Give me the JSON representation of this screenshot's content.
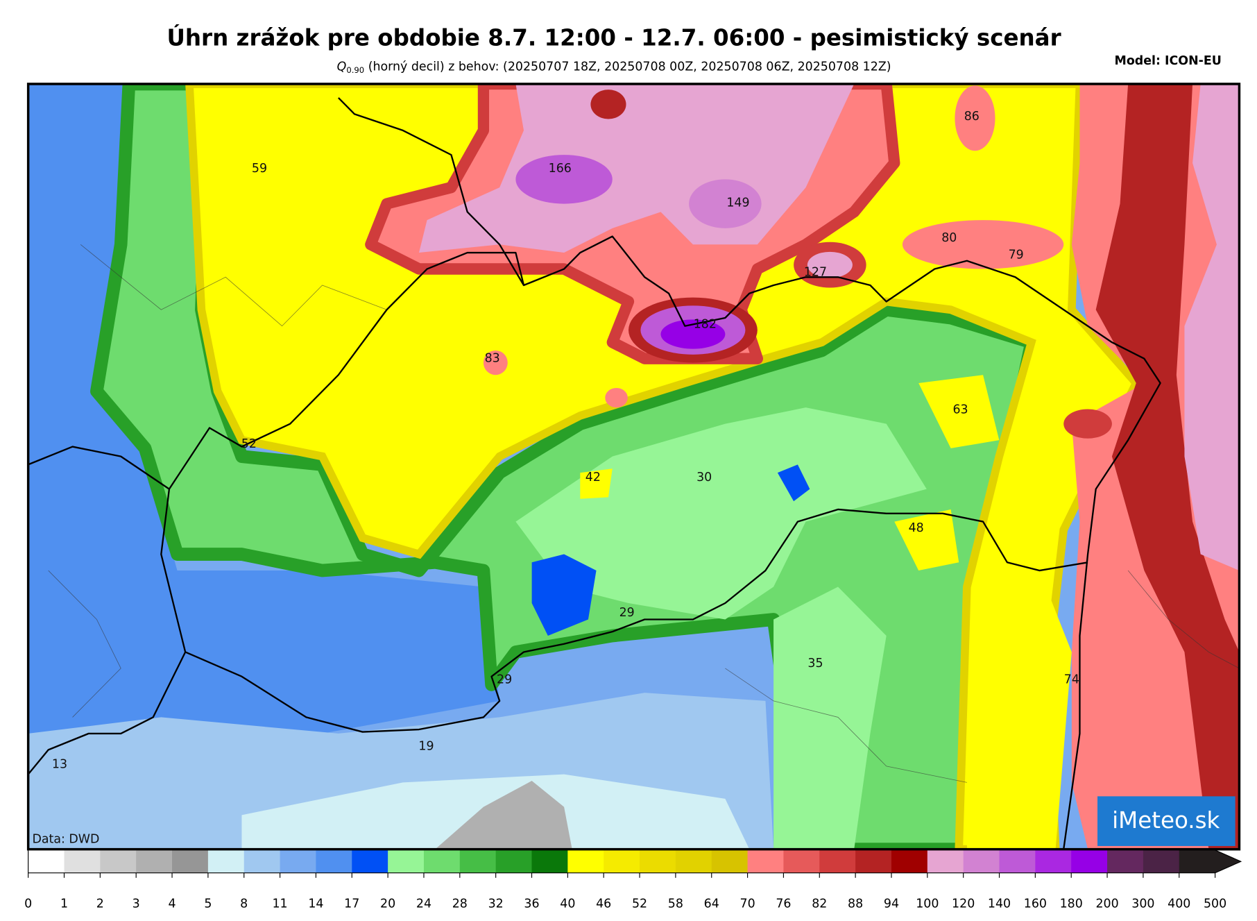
{
  "header": {
    "title": "Úhrn zrážok pre obdobie 8.7. 12:00 - 12.7. 06:00 - pesimistický scenár",
    "subtitle_symbol": "Q",
    "subtitle_subscript": "0.90",
    "subtitle": " (horný decil) z behov: (20250707 18Z, 20250708 00Z, 20250708 06Z, 20250708 12Z)",
    "model": "Model: ICON-EU"
  },
  "map": {
    "labels": [
      59,
      166,
      149,
      86,
      80,
      79,
      127,
      182,
      83,
      63,
      52,
      42,
      30,
      48,
      29,
      35,
      74,
      29,
      19,
      13
    ],
    "source": "Data: DWD",
    "logo": "iMeteo.sk"
  },
  "colorbar": {
    "ticks": [
      0,
      1,
      2,
      3,
      4,
      5,
      8,
      11,
      14,
      17,
      20,
      24,
      28,
      32,
      36,
      40,
      46,
      52,
      58,
      64,
      70,
      76,
      82,
      88,
      94,
      100,
      120,
      140,
      160,
      180,
      200,
      300,
      400,
      500
    ],
    "colors": [
      "#ffffff",
      "#e0e0e0",
      "#c8c8c8",
      "#b0b0b0",
      "#969696",
      "#d2f0f5",
      "#a0c8f0",
      "#78aaf0",
      "#5090f0",
      "#0050f5",
      "#96f596",
      "#6edc6e",
      "#46be46",
      "#28a028",
      "#0a780a",
      "#ffff00",
      "#f5eb00",
      "#ebdc00",
      "#e1d200",
      "#d7c300",
      "#ff8080",
      "#e65a5a",
      "#d03c3c",
      "#b42323",
      "#a00000",
      "#e6a5d2",
      "#d282d2",
      "#be5ad7",
      "#aa28e1",
      "#9600e6",
      "#64285f",
      "#4b2346",
      "#231e1e"
    ],
    "extend": true
  }
}
